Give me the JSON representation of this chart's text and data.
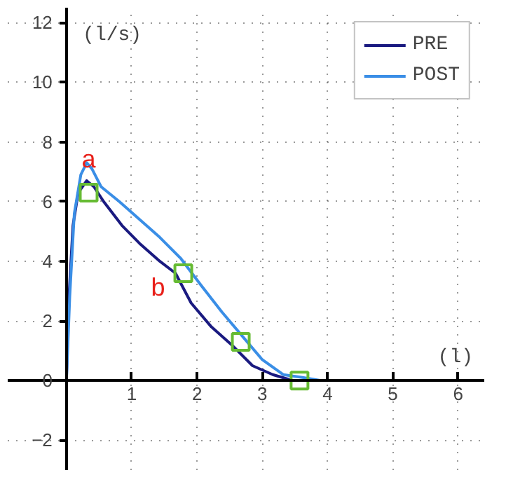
{
  "chart_data": {
    "type": "line",
    "xlabel": "(l)",
    "ylabel": "(l/s)",
    "xlim": [
      -0.9,
      6.4
    ],
    "ylim": [
      -3,
      12.5
    ],
    "xticks": [
      1,
      2,
      3,
      4,
      5,
      6
    ],
    "yticks": [
      -2,
      0,
      2,
      4,
      6,
      8,
      10,
      12
    ],
    "grid": true,
    "legend": "top right",
    "marker": "none",
    "line_style": "solid",
    "series": [
      {
        "name": "PRE",
        "color": "#1a1a80",
        "x": [
          0,
          0.03,
          0.1,
          0.18,
          0.31,
          0.42,
          0.57,
          0.85,
          1.12,
          1.43,
          1.67,
          1.91,
          2.22,
          2.53,
          2.85,
          3.16,
          3.47
        ],
        "values": [
          0,
          2.5,
          5.2,
          6.3,
          6.7,
          6.5,
          6.0,
          5.2,
          4.6,
          4.0,
          3.6,
          2.6,
          1.8,
          1.2,
          0.5,
          0.2,
          0
        ]
      },
      {
        "name": "POST",
        "color": "#3a8ee6",
        "x": [
          0,
          0.05,
          0.12,
          0.22,
          0.31,
          0.39,
          0.53,
          0.81,
          1.12,
          1.43,
          1.75,
          2.06,
          2.38,
          2.69,
          3.0,
          3.32,
          3.63,
          3.9
        ],
        "values": [
          0,
          2.8,
          5.6,
          6.9,
          7.3,
          7.1,
          6.5,
          6.0,
          5.4,
          4.8,
          4.1,
          3.2,
          2.3,
          1.5,
          0.7,
          0.2,
          0.1,
          0
        ]
      },
      {
        "type": "scatter",
        "marker": "square",
        "color": "#66bb33",
        "x": [
          0.34,
          1.79,
          2.67,
          3.57
        ],
        "values": [
          6.3,
          3.6,
          1.3,
          0
        ]
      }
    ],
    "annotations": [
      "a",
      "b"
    ]
  }
}
